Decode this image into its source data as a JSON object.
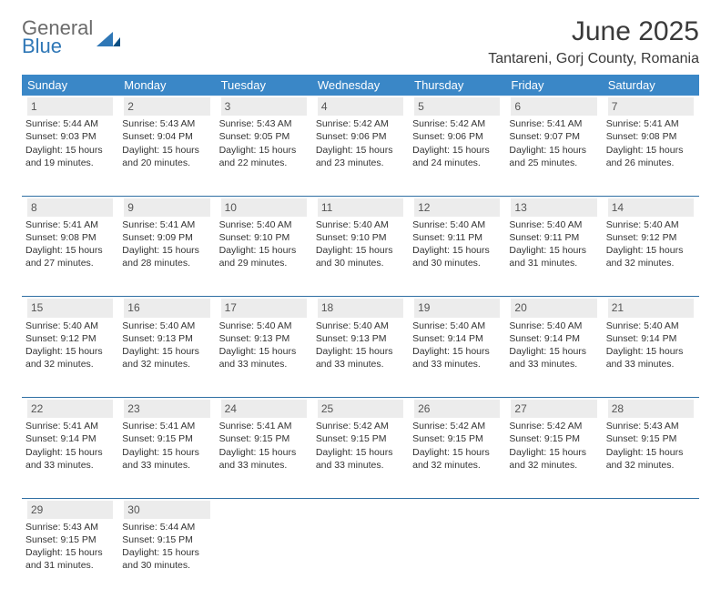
{
  "logo": {
    "text_top": "General",
    "text_bottom": "Blue"
  },
  "title": "June 2025",
  "location": "Tantareni, Gorj County, Romania",
  "colors": {
    "header_bg": "#3a87c7",
    "header_text": "#ffffff",
    "daynum_bg": "#ececec",
    "rule": "#2f6fa3",
    "logo_gray": "#6b6b6b",
    "logo_blue": "#2f77b6"
  },
  "weekdays": [
    "Sunday",
    "Monday",
    "Tuesday",
    "Wednesday",
    "Thursday",
    "Friday",
    "Saturday"
  ],
  "weeks": [
    [
      {
        "n": "1",
        "sr": "Sunrise: 5:44 AM",
        "ss": "Sunset: 9:03 PM",
        "d1": "Daylight: 15 hours",
        "d2": "and 19 minutes."
      },
      {
        "n": "2",
        "sr": "Sunrise: 5:43 AM",
        "ss": "Sunset: 9:04 PM",
        "d1": "Daylight: 15 hours",
        "d2": "and 20 minutes."
      },
      {
        "n": "3",
        "sr": "Sunrise: 5:43 AM",
        "ss": "Sunset: 9:05 PM",
        "d1": "Daylight: 15 hours",
        "d2": "and 22 minutes."
      },
      {
        "n": "4",
        "sr": "Sunrise: 5:42 AM",
        "ss": "Sunset: 9:06 PM",
        "d1": "Daylight: 15 hours",
        "d2": "and 23 minutes."
      },
      {
        "n": "5",
        "sr": "Sunrise: 5:42 AM",
        "ss": "Sunset: 9:06 PM",
        "d1": "Daylight: 15 hours",
        "d2": "and 24 minutes."
      },
      {
        "n": "6",
        "sr": "Sunrise: 5:41 AM",
        "ss": "Sunset: 9:07 PM",
        "d1": "Daylight: 15 hours",
        "d2": "and 25 minutes."
      },
      {
        "n": "7",
        "sr": "Sunrise: 5:41 AM",
        "ss": "Sunset: 9:08 PM",
        "d1": "Daylight: 15 hours",
        "d2": "and 26 minutes."
      }
    ],
    [
      {
        "n": "8",
        "sr": "Sunrise: 5:41 AM",
        "ss": "Sunset: 9:08 PM",
        "d1": "Daylight: 15 hours",
        "d2": "and 27 minutes."
      },
      {
        "n": "9",
        "sr": "Sunrise: 5:41 AM",
        "ss": "Sunset: 9:09 PM",
        "d1": "Daylight: 15 hours",
        "d2": "and 28 minutes."
      },
      {
        "n": "10",
        "sr": "Sunrise: 5:40 AM",
        "ss": "Sunset: 9:10 PM",
        "d1": "Daylight: 15 hours",
        "d2": "and 29 minutes."
      },
      {
        "n": "11",
        "sr": "Sunrise: 5:40 AM",
        "ss": "Sunset: 9:10 PM",
        "d1": "Daylight: 15 hours",
        "d2": "and 30 minutes."
      },
      {
        "n": "12",
        "sr": "Sunrise: 5:40 AM",
        "ss": "Sunset: 9:11 PM",
        "d1": "Daylight: 15 hours",
        "d2": "and 30 minutes."
      },
      {
        "n": "13",
        "sr": "Sunrise: 5:40 AM",
        "ss": "Sunset: 9:11 PM",
        "d1": "Daylight: 15 hours",
        "d2": "and 31 minutes."
      },
      {
        "n": "14",
        "sr": "Sunrise: 5:40 AM",
        "ss": "Sunset: 9:12 PM",
        "d1": "Daylight: 15 hours",
        "d2": "and 32 minutes."
      }
    ],
    [
      {
        "n": "15",
        "sr": "Sunrise: 5:40 AM",
        "ss": "Sunset: 9:12 PM",
        "d1": "Daylight: 15 hours",
        "d2": "and 32 minutes."
      },
      {
        "n": "16",
        "sr": "Sunrise: 5:40 AM",
        "ss": "Sunset: 9:13 PM",
        "d1": "Daylight: 15 hours",
        "d2": "and 32 minutes."
      },
      {
        "n": "17",
        "sr": "Sunrise: 5:40 AM",
        "ss": "Sunset: 9:13 PM",
        "d1": "Daylight: 15 hours",
        "d2": "and 33 minutes."
      },
      {
        "n": "18",
        "sr": "Sunrise: 5:40 AM",
        "ss": "Sunset: 9:13 PM",
        "d1": "Daylight: 15 hours",
        "d2": "and 33 minutes."
      },
      {
        "n": "19",
        "sr": "Sunrise: 5:40 AM",
        "ss": "Sunset: 9:14 PM",
        "d1": "Daylight: 15 hours",
        "d2": "and 33 minutes."
      },
      {
        "n": "20",
        "sr": "Sunrise: 5:40 AM",
        "ss": "Sunset: 9:14 PM",
        "d1": "Daylight: 15 hours",
        "d2": "and 33 minutes."
      },
      {
        "n": "21",
        "sr": "Sunrise: 5:40 AM",
        "ss": "Sunset: 9:14 PM",
        "d1": "Daylight: 15 hours",
        "d2": "and 33 minutes."
      }
    ],
    [
      {
        "n": "22",
        "sr": "Sunrise: 5:41 AM",
        "ss": "Sunset: 9:14 PM",
        "d1": "Daylight: 15 hours",
        "d2": "and 33 minutes."
      },
      {
        "n": "23",
        "sr": "Sunrise: 5:41 AM",
        "ss": "Sunset: 9:15 PM",
        "d1": "Daylight: 15 hours",
        "d2": "and 33 minutes."
      },
      {
        "n": "24",
        "sr": "Sunrise: 5:41 AM",
        "ss": "Sunset: 9:15 PM",
        "d1": "Daylight: 15 hours",
        "d2": "and 33 minutes."
      },
      {
        "n": "25",
        "sr": "Sunrise: 5:42 AM",
        "ss": "Sunset: 9:15 PM",
        "d1": "Daylight: 15 hours",
        "d2": "and 33 minutes."
      },
      {
        "n": "26",
        "sr": "Sunrise: 5:42 AM",
        "ss": "Sunset: 9:15 PM",
        "d1": "Daylight: 15 hours",
        "d2": "and 32 minutes."
      },
      {
        "n": "27",
        "sr": "Sunrise: 5:42 AM",
        "ss": "Sunset: 9:15 PM",
        "d1": "Daylight: 15 hours",
        "d2": "and 32 minutes."
      },
      {
        "n": "28",
        "sr": "Sunrise: 5:43 AM",
        "ss": "Sunset: 9:15 PM",
        "d1": "Daylight: 15 hours",
        "d2": "and 32 minutes."
      }
    ],
    [
      {
        "n": "29",
        "sr": "Sunrise: 5:43 AM",
        "ss": "Sunset: 9:15 PM",
        "d1": "Daylight: 15 hours",
        "d2": "and 31 minutes."
      },
      {
        "n": "30",
        "sr": "Sunrise: 5:44 AM",
        "ss": "Sunset: 9:15 PM",
        "d1": "Daylight: 15 hours",
        "d2": "and 30 minutes."
      },
      null,
      null,
      null,
      null,
      null
    ]
  ]
}
